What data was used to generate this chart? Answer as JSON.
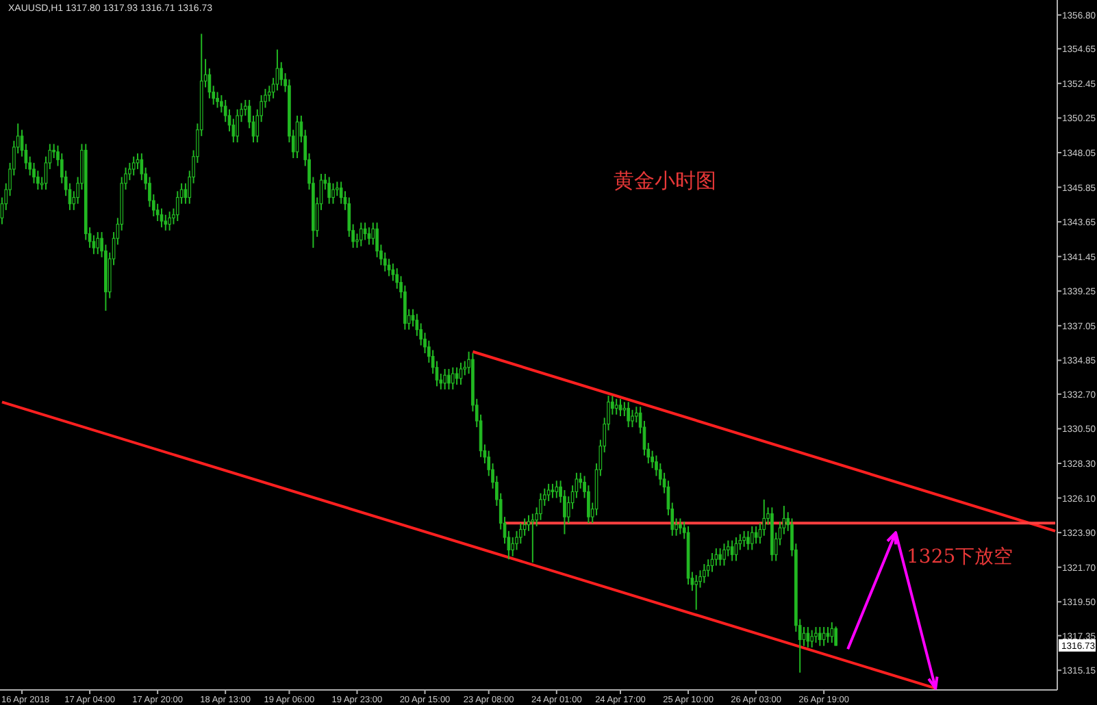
{
  "chart_data": {
    "type": "candlestick",
    "title": "XAUUSD,H1  1317.80 1317.93 1316.71 1316.73",
    "color": "#22b822",
    "categories": [
      null,
      null,
      null,
      null,
      null,
      "16 Apr 2018",
      null,
      null,
      null,
      null,
      null,
      null,
      null,
      null,
      null,
      null,
      null,
      null,
      null,
      null,
      null,
      null,
      "17 Apr 04:00",
      null,
      null,
      null,
      null,
      null,
      null,
      null,
      null,
      null,
      null,
      null,
      null,
      null,
      null,
      null,
      null,
      "17 Apr 20:00",
      null,
      null,
      null,
      null,
      null,
      null,
      null,
      null,
      null,
      null,
      null,
      null,
      null,
      null,
      null,
      null,
      "18 Apr 13:00",
      null,
      null,
      null,
      null,
      null,
      null,
      null,
      null,
      null,
      null,
      null,
      null,
      null,
      null,
      null,
      "19 Apr 06:00",
      null,
      null,
      null,
      null,
      null,
      null,
      null,
      null,
      null,
      null,
      null,
      null,
      null,
      null,
      null,
      null,
      "19 Apr 23:00",
      null,
      null,
      null,
      null,
      null,
      null,
      null,
      null,
      null,
      null,
      null,
      null,
      null,
      null,
      null,
      null,
      "20 Apr 15:00",
      null,
      null,
      null,
      null,
      null,
      null,
      null,
      null,
      null,
      null,
      null,
      null,
      null,
      null,
      null,
      "23 Apr 08:00",
      null,
      null,
      null,
      null,
      null,
      null,
      null,
      null,
      null,
      null,
      null,
      null,
      null,
      null,
      null,
      null,
      "24 Apr 01:00",
      null,
      null,
      null,
      null,
      null,
      null,
      null,
      null,
      null,
      null,
      null,
      null,
      null,
      null,
      null,
      "24 Apr 17:00",
      null,
      null,
      null,
      null,
      null,
      null,
      null,
      null,
      null,
      null,
      null,
      null,
      null,
      null,
      null,
      null,
      "25 Apr 10:00",
      null,
      null,
      null,
      null,
      null,
      null,
      null,
      null,
      null,
      null,
      null,
      null,
      null,
      null,
      null,
      null,
      "26 Apr 03:00",
      null,
      null,
      null,
      null,
      null,
      null,
      null,
      null,
      null,
      null,
      null,
      null,
      null,
      null,
      null,
      null,
      "26 Apr 19:00",
      null,
      null,
      null,
      null,
      null,
      null,
      null,
      null,
      null,
      null,
      null,
      null,
      null,
      null,
      null,
      null,
      null,
      null,
      null,
      null,
      null,
      null,
      null,
      null,
      null,
      null,
      null,
      null,
      null,
      null,
      null,
      null,
      null,
      null,
      null,
      null,
      null,
      null,
      null,
      null,
      null,
      null,
      null,
      null,
      null,
      null,
      null,
      null,
      null,
      null,
      null,
      null,
      null,
      null,
      null,
      null,
      null,
      null
    ],
    "ohlc": [
      [
        1343.9,
        1345.2,
        1343.5,
        1344.8
      ],
      [
        1344.8,
        1346.1,
        1344.4,
        1345.7
      ],
      [
        1345.7,
        1347.4,
        1345.3,
        1347.0
      ],
      [
        1347.0,
        1348.8,
        1346.6,
        1348.4
      ],
      [
        1348.4,
        1349.9,
        1348.0,
        1349.1
      ],
      [
        1349.1,
        1349.5,
        1347.8,
        1348.2
      ],
      [
        1348.2,
        1348.6,
        1347.0,
        1347.4
      ],
      [
        1347.4,
        1347.8,
        1346.6,
        1347.0
      ],
      [
        1347.0,
        1347.4,
        1346.1,
        1346.5
      ],
      [
        1346.5,
        1346.9,
        1345.7,
        1346.1
      ],
      [
        1346.1,
        1346.5,
        1345.7,
        1346.1
      ],
      [
        1346.1,
        1347.8,
        1345.7,
        1347.4
      ],
      [
        1347.4,
        1348.6,
        1347.0,
        1348.2
      ],
      [
        1348.2,
        1348.6,
        1347.7,
        1348.1
      ],
      [
        1348.1,
        1348.5,
        1347.2,
        1347.6
      ],
      [
        1347.6,
        1348.0,
        1346.1,
        1346.5
      ],
      [
        1346.5,
        1346.9,
        1345.3,
        1345.7
      ],
      [
        1345.7,
        1346.1,
        1344.4,
        1344.8
      ],
      [
        1344.8,
        1345.6,
        1344.4,
        1345.2
      ],
      [
        1345.2,
        1346.5,
        1344.8,
        1346.1
      ],
      [
        1346.1,
        1348.6,
        1345.7,
        1348.2
      ],
      [
        1348.2,
        1348.6,
        1342.5,
        1342.9
      ],
      [
        1342.9,
        1343.3,
        1342.0,
        1342.4
      ],
      [
        1342.4,
        1342.8,
        1341.6,
        1342.0
      ],
      [
        1342.0,
        1343.0,
        1341.6,
        1342.6
      ],
      [
        1342.6,
        1343.0,
        1341.4,
        1341.8
      ],
      [
        1341.8,
        1342.2,
        1338.0,
        1339.2
      ],
      [
        1339.2,
        1341.7,
        1338.8,
        1341.3
      ],
      [
        1341.3,
        1343.0,
        1340.9,
        1342.6
      ],
      [
        1342.6,
        1343.9,
        1342.2,
        1343.5
      ],
      [
        1343.5,
        1346.5,
        1343.1,
        1346.1
      ],
      [
        1346.1,
        1347.1,
        1345.7,
        1346.7
      ],
      [
        1346.7,
        1347.4,
        1346.3,
        1347.0
      ],
      [
        1347.0,
        1347.8,
        1346.6,
        1347.4
      ],
      [
        1347.4,
        1348.0,
        1347.0,
        1347.6
      ],
      [
        1347.6,
        1348.0,
        1346.3,
        1346.7
      ],
      [
        1346.7,
        1347.1,
        1345.7,
        1346.1
      ],
      [
        1346.1,
        1346.5,
        1344.6,
        1345.0
      ],
      [
        1345.0,
        1345.4,
        1344.0,
        1344.4
      ],
      [
        1344.4,
        1344.8,
        1343.7,
        1344.1
      ],
      [
        1344.1,
        1344.5,
        1343.3,
        1343.7
      ],
      [
        1343.7,
        1344.1,
        1343.1,
        1343.5
      ],
      [
        1343.5,
        1344.3,
        1343.1,
        1343.9
      ],
      [
        1343.9,
        1344.5,
        1343.5,
        1344.1
      ],
      [
        1344.1,
        1345.6,
        1343.7,
        1345.2
      ],
      [
        1345.2,
        1346.1,
        1344.8,
        1345.7
      ],
      [
        1345.7,
        1346.1,
        1344.8,
        1345.2
      ],
      [
        1345.2,
        1346.9,
        1344.8,
        1346.5
      ],
      [
        1346.5,
        1348.2,
        1346.1,
        1347.8
      ],
      [
        1347.8,
        1349.9,
        1347.4,
        1349.5
      ],
      [
        1349.5,
        1355.6,
        1349.1,
        1352.6
      ],
      [
        1352.6,
        1354.0,
        1352.2,
        1353.0
      ],
      [
        1353.0,
        1353.4,
        1351.5,
        1351.9
      ],
      [
        1351.9,
        1352.3,
        1351.1,
        1351.5
      ],
      [
        1351.5,
        1351.9,
        1350.9,
        1351.3
      ],
      [
        1351.3,
        1351.7,
        1350.6,
        1351.0
      ],
      [
        1351.0,
        1351.4,
        1350.0,
        1350.4
      ],
      [
        1350.4,
        1350.8,
        1349.4,
        1349.8
      ],
      [
        1349.8,
        1350.2,
        1348.7,
        1349.1
      ],
      [
        1349.1,
        1350.8,
        1348.7,
        1350.4
      ],
      [
        1350.4,
        1351.2,
        1350.0,
        1350.8
      ],
      [
        1350.8,
        1351.4,
        1350.4,
        1351.0
      ],
      [
        1351.0,
        1351.4,
        1349.6,
        1350.0
      ],
      [
        1350.0,
        1350.4,
        1348.7,
        1349.1
      ],
      [
        1349.1,
        1350.8,
        1348.7,
        1350.4
      ],
      [
        1350.4,
        1351.7,
        1350.0,
        1351.3
      ],
      [
        1351.3,
        1352.1,
        1350.9,
        1351.7
      ],
      [
        1351.7,
        1352.3,
        1351.3,
        1351.9
      ],
      [
        1351.9,
        1352.8,
        1351.5,
        1352.4
      ],
      [
        1352.4,
        1354.6,
        1352.0,
        1353.4
      ],
      [
        1353.4,
        1353.8,
        1352.3,
        1352.7
      ],
      [
        1352.7,
        1353.1,
        1351.9,
        1352.3
      ],
      [
        1352.3,
        1352.7,
        1348.7,
        1349.1
      ],
      [
        1349.1,
        1349.5,
        1347.7,
        1348.1
      ],
      [
        1348.1,
        1350.4,
        1347.7,
        1350.0
      ],
      [
        1350.0,
        1350.4,
        1348.7,
        1349.1
      ],
      [
        1349.1,
        1349.5,
        1347.2,
        1347.6
      ],
      [
        1347.6,
        1348.0,
        1345.7,
        1346.1
      ],
      [
        1346.1,
        1346.5,
        1342.0,
        1343.1
      ],
      [
        1343.1,
        1345.2,
        1342.7,
        1344.8
      ],
      [
        1344.8,
        1346.7,
        1344.4,
        1346.3
      ],
      [
        1346.3,
        1346.7,
        1345.7,
        1346.1
      ],
      [
        1346.1,
        1346.5,
        1344.8,
        1345.2
      ],
      [
        1345.2,
        1346.1,
        1344.8,
        1345.7
      ],
      [
        1345.7,
        1346.2,
        1345.3,
        1345.8
      ],
      [
        1345.8,
        1346.2,
        1344.8,
        1345.2
      ],
      [
        1345.2,
        1345.6,
        1344.4,
        1344.8
      ],
      [
        1344.8,
        1345.2,
        1342.7,
        1343.1
      ],
      [
        1343.1,
        1343.5,
        1342.0,
        1342.4
      ],
      [
        1342.4,
        1342.9,
        1342.0,
        1342.5
      ],
      [
        1342.5,
        1343.6,
        1342.1,
        1343.2
      ],
      [
        1343.2,
        1343.6,
        1342.5,
        1342.9
      ],
      [
        1342.9,
        1343.3,
        1342.2,
        1342.6
      ],
      [
        1342.6,
        1343.6,
        1342.2,
        1343.2
      ],
      [
        1343.2,
        1343.6,
        1341.4,
        1341.8
      ],
      [
        1341.8,
        1342.2,
        1340.9,
        1341.3
      ],
      [
        1341.3,
        1341.7,
        1340.5,
        1340.9
      ],
      [
        1340.9,
        1341.3,
        1340.2,
        1340.6
      ],
      [
        1340.6,
        1341.0,
        1339.9,
        1340.3
      ],
      [
        1340.3,
        1340.7,
        1339.4,
        1339.8
      ],
      [
        1339.8,
        1340.2,
        1338.8,
        1339.2
      ],
      [
        1339.2,
        1339.6,
        1336.8,
        1337.2
      ],
      [
        1337.2,
        1338.1,
        1336.8,
        1337.7
      ],
      [
        1337.7,
        1338.1,
        1337.0,
        1337.4
      ],
      [
        1337.4,
        1337.8,
        1336.4,
        1336.8
      ],
      [
        1336.8,
        1337.2,
        1335.8,
        1336.2
      ],
      [
        1336.2,
        1336.6,
        1335.3,
        1335.7
      ],
      [
        1335.7,
        1336.1,
        1334.7,
        1335.1
      ],
      [
        1335.1,
        1335.5,
        1334.0,
        1334.4
      ],
      [
        1334.4,
        1334.8,
        1333.2,
        1333.6
      ],
      [
        1333.6,
        1334.0,
        1333.0,
        1333.4
      ],
      [
        1333.4,
        1334.3,
        1333.0,
        1333.9
      ],
      [
        1333.9,
        1334.3,
        1333.0,
        1333.4
      ],
      [
        1333.4,
        1334.4,
        1333.0,
        1334.0
      ],
      [
        1334.0,
        1334.4,
        1333.3,
        1333.7
      ],
      [
        1333.7,
        1334.7,
        1333.3,
        1334.3
      ],
      [
        1334.3,
        1334.8,
        1333.9,
        1334.4
      ],
      [
        1334.4,
        1335.4,
        1334.0,
        1334.9
      ],
      [
        1334.9,
        1335.3,
        1331.6,
        1332.0
      ],
      [
        1332.0,
        1332.4,
        1330.6,
        1331.0
      ],
      [
        1331.0,
        1331.4,
        1328.7,
        1329.1
      ],
      [
        1329.1,
        1329.5,
        1328.3,
        1328.7
      ],
      [
        1328.7,
        1329.1,
        1327.5,
        1327.9
      ],
      [
        1327.9,
        1328.3,
        1326.7,
        1327.1
      ],
      [
        1327.1,
        1327.5,
        1325.6,
        1326.0
      ],
      [
        1326.0,
        1326.4,
        1324.1,
        1324.5
      ],
      [
        1324.5,
        1324.9,
        1323.2,
        1323.6
      ],
      [
        1323.6,
        1324.0,
        1322.2,
        1322.8
      ],
      [
        1322.8,
        1323.6,
        1322.4,
        1323.2
      ],
      [
        1323.2,
        1324.0,
        1322.8,
        1323.6
      ],
      [
        1323.6,
        1324.5,
        1323.2,
        1324.1
      ],
      [
        1324.1,
        1324.8,
        1323.7,
        1324.4
      ],
      [
        1324.4,
        1325.0,
        1324.0,
        1324.6
      ],
      [
        1324.6,
        1325.1,
        1322.0,
        1324.7
      ],
      [
        1324.7,
        1325.5,
        1324.3,
        1325.1
      ],
      [
        1325.1,
        1326.4,
        1324.7,
        1326.0
      ],
      [
        1326.0,
        1326.7,
        1325.6,
        1326.3
      ],
      [
        1326.3,
        1327.0,
        1325.9,
        1326.6
      ],
      [
        1326.6,
        1327.0,
        1326.1,
        1326.5
      ],
      [
        1326.5,
        1327.2,
        1326.1,
        1326.8
      ],
      [
        1326.8,
        1327.2,
        1325.8,
        1326.2
      ],
      [
        1326.2,
        1326.6,
        1323.8,
        1324.9
      ],
      [
        1324.9,
        1326.2,
        1324.5,
        1325.8
      ],
      [
        1325.8,
        1326.9,
        1325.4,
        1326.5
      ],
      [
        1326.5,
        1327.7,
        1326.1,
        1327.3
      ],
      [
        1327.3,
        1327.7,
        1326.7,
        1327.1
      ],
      [
        1327.1,
        1327.5,
        1326.1,
        1326.5
      ],
      [
        1326.5,
        1326.9,
        1324.5,
        1324.9
      ],
      [
        1324.9,
        1325.8,
        1324.5,
        1325.4
      ],
      [
        1325.4,
        1328.3,
        1325.0,
        1327.9
      ],
      [
        1327.9,
        1329.8,
        1327.5,
        1329.4
      ],
      [
        1329.4,
        1331.2,
        1329.0,
        1330.8
      ],
      [
        1330.8,
        1332.6,
        1330.4,
        1332.2
      ],
      [
        1332.2,
        1332.6,
        1331.4,
        1331.8
      ],
      [
        1331.8,
        1332.4,
        1331.4,
        1332.0
      ],
      [
        1332.0,
        1332.4,
        1331.3,
        1331.7
      ],
      [
        1331.7,
        1332.2,
        1331.3,
        1331.8
      ],
      [
        1331.8,
        1332.2,
        1330.6,
        1331.0
      ],
      [
        1331.0,
        1331.7,
        1330.6,
        1331.3
      ],
      [
        1331.3,
        1331.9,
        1330.9,
        1331.5
      ],
      [
        1331.5,
        1331.9,
        1330.2,
        1330.6
      ],
      [
        1330.6,
        1331.0,
        1328.8,
        1329.2
      ],
      [
        1329.2,
        1329.6,
        1328.3,
        1328.7
      ],
      [
        1328.7,
        1329.1,
        1328.0,
        1328.4
      ],
      [
        1328.4,
        1328.8,
        1327.5,
        1327.9
      ],
      [
        1327.9,
        1328.3,
        1326.9,
        1327.3
      ],
      [
        1327.3,
        1327.7,
        1326.4,
        1326.8
      ],
      [
        1326.8,
        1327.2,
        1325.0,
        1325.4
      ],
      [
        1325.4,
        1325.8,
        1323.7,
        1324.1
      ],
      [
        1324.1,
        1324.8,
        1323.7,
        1324.4
      ],
      [
        1324.4,
        1324.8,
        1323.8,
        1324.2
      ],
      [
        1324.2,
        1324.6,
        1323.5,
        1323.9
      ],
      [
        1323.9,
        1324.3,
        1320.6,
        1321.0
      ],
      [
        1321.0,
        1321.4,
        1320.2,
        1320.6
      ],
      [
        1320.6,
        1321.2,
        1319.0,
        1320.8
      ],
      [
        1320.8,
        1321.5,
        1320.4,
        1321.1
      ],
      [
        1321.1,
        1321.9,
        1320.7,
        1321.5
      ],
      [
        1321.5,
        1322.2,
        1321.1,
        1321.8
      ],
      [
        1321.8,
        1322.6,
        1321.4,
        1322.2
      ],
      [
        1322.2,
        1322.9,
        1321.8,
        1322.5
      ],
      [
        1322.5,
        1322.9,
        1321.8,
        1322.2
      ],
      [
        1322.2,
        1323.2,
        1321.8,
        1322.8
      ],
      [
        1322.8,
        1323.4,
        1322.4,
        1323.0
      ],
      [
        1323.0,
        1323.4,
        1322.1,
        1322.5
      ],
      [
        1322.5,
        1323.6,
        1322.1,
        1323.2
      ],
      [
        1323.2,
        1323.8,
        1322.8,
        1323.4
      ],
      [
        1323.4,
        1324.0,
        1323.0,
        1323.6
      ],
      [
        1323.6,
        1324.0,
        1322.8,
        1323.2
      ],
      [
        1323.2,
        1324.3,
        1322.8,
        1323.9
      ],
      [
        1323.9,
        1324.3,
        1323.2,
        1323.6
      ],
      [
        1323.6,
        1324.5,
        1323.2,
        1324.1
      ],
      [
        1324.1,
        1326.0,
        1323.7,
        1324.8
      ],
      [
        1324.8,
        1325.5,
        1324.4,
        1325.1
      ],
      [
        1325.1,
        1325.5,
        1322.1,
        1322.5
      ],
      [
        1322.5,
        1323.9,
        1322.1,
        1323.5
      ],
      [
        1323.5,
        1324.6,
        1323.1,
        1324.2
      ],
      [
        1324.2,
        1325.6,
        1323.8,
        1324.8
      ],
      [
        1324.8,
        1325.2,
        1324.0,
        1324.4
      ],
      [
        1324.4,
        1324.8,
        1322.4,
        1322.8
      ],
      [
        1322.8,
        1323.2,
        1317.6,
        1318.0
      ],
      [
        1318.0,
        1318.4,
        1315.0,
        1317.1
      ],
      [
        1317.1,
        1317.9,
        1316.7,
        1317.5
      ],
      [
        1317.5,
        1317.9,
        1316.6,
        1317.0
      ],
      [
        1317.0,
        1317.7,
        1316.6,
        1317.3
      ],
      [
        1317.3,
        1317.9,
        1316.9,
        1317.5
      ],
      [
        1317.5,
        1317.9,
        1316.7,
        1317.1
      ],
      [
        1317.1,
        1317.9,
        1316.7,
        1317.5
      ],
      [
        1317.5,
        1317.9,
        1316.9,
        1317.3
      ],
      [
        1317.3,
        1318.2,
        1316.9,
        1317.8
      ],
      [
        1317.8,
        1317.93,
        1316.71,
        1316.73
      ],
      null,
      null,
      null,
      null,
      null,
      null,
      null,
      null,
      null,
      null,
      null,
      null,
      null,
      null,
      null,
      null,
      null,
      null,
      null,
      null,
      null,
      null,
      null,
      null,
      null,
      null,
      null,
      null,
      null,
      null,
      null,
      null,
      null,
      null,
      null,
      null,
      null,
      null,
      null,
      null,
      null,
      null,
      null,
      null,
      null,
      null,
      null,
      null,
      null,
      null,
      null,
      null,
      null,
      null,
      null
    ],
    "series": [
      {
        "type": "line",
        "color": "#ff2020",
        "values": [
          null,
          null,
          null,
          null,
          null,
          null,
          null,
          null,
          null,
          null,
          null,
          null,
          null,
          null,
          null,
          null,
          null,
          null,
          null,
          null,
          null,
          null,
          null,
          null,
          null,
          null,
          null,
          null,
          null,
          null,
          null,
          null,
          null,
          null,
          null,
          null,
          null,
          null,
          null,
          null,
          null,
          null,
          null,
          null,
          null,
          null,
          null,
          null,
          null,
          null,
          null,
          null,
          null,
          null,
          null,
          null,
          null,
          null,
          null,
          null,
          null,
          null,
          null,
          null,
          null,
          null,
          null,
          null,
          null,
          null,
          null,
          null,
          null,
          null,
          null,
          null,
          null,
          null,
          null,
          null,
          null,
          null,
          null,
          null,
          null,
          null,
          null,
          null,
          null,
          null,
          null,
          null,
          null,
          null,
          null,
          null,
          null,
          null,
          null,
          null,
          null,
          null,
          null,
          null,
          null,
          null,
          null,
          null,
          null,
          null,
          null,
          null,
          null,
          null,
          null,
          null,
          null,
          null,
          1335.4,
          null,
          null,
          null,
          null,
          null,
          null,
          null,
          null,
          null,
          null,
          null,
          null,
          null,
          null,
          null,
          null,
          null,
          null,
          null,
          null,
          null,
          null,
          null,
          null,
          null,
          null,
          null,
          null,
          null,
          null,
          null,
          null,
          null,
          null,
          null,
          null,
          null,
          null,
          null,
          null,
          null,
          null,
          null,
          null,
          null,
          null,
          null,
          null,
          null,
          null,
          null,
          null,
          null,
          null,
          null,
          null,
          null,
          null,
          null,
          null,
          null,
          null,
          null,
          null,
          null,
          null,
          null,
          null,
          null,
          null,
          null,
          null,
          null,
          null,
          null,
          null,
          null,
          null,
          null,
          null,
          null,
          null,
          null,
          null,
          null,
          null,
          null,
          null,
          null,
          null,
          null,
          null,
          null,
          null,
          null,
          null,
          null,
          null,
          null,
          null,
          null,
          null,
          null,
          null,
          null,
          null,
          null,
          null,
          null,
          null,
          null,
          null,
          null,
          null,
          null,
          null,
          null,
          null,
          null,
          null,
          null,
          null,
          null,
          null,
          null,
          null,
          null,
          null,
          null,
          null,
          null,
          null,
          null,
          null,
          null,
          null,
          null,
          null,
          null,
          null,
          null,
          null,
          null,
          null,
          null,
          1324.0
        ]
      },
      {
        "type": "line",
        "color": "#ff2020",
        "values": [
          1332.2,
          null,
          null,
          null,
          null,
          null,
          null,
          null,
          null,
          null,
          null,
          null,
          null,
          null,
          null,
          null,
          null,
          null,
          null,
          null,
          null,
          null,
          null,
          null,
          null,
          null,
          null,
          null,
          null,
          null,
          null,
          null,
          null,
          null,
          null,
          null,
          null,
          null,
          null,
          null,
          null,
          null,
          null,
          null,
          null,
          null,
          null,
          null,
          null,
          null,
          null,
          null,
          null,
          null,
          null,
          null,
          null,
          null,
          null,
          null,
          null,
          null,
          null,
          null,
          null,
          null,
          null,
          null,
          null,
          null,
          null,
          null,
          null,
          null,
          null,
          null,
          null,
          null,
          null,
          null,
          null,
          null,
          null,
          null,
          null,
          null,
          null,
          null,
          null,
          null,
          null,
          null,
          null,
          null,
          null,
          null,
          null,
          null,
          null,
          null,
          null,
          null,
          null,
          null,
          null,
          null,
          null,
          null,
          null,
          null,
          null,
          null,
          null,
          null,
          null,
          null,
          null,
          null,
          null,
          null,
          null,
          null,
          null,
          null,
          null,
          null,
          null,
          null,
          null,
          null,
          null,
          null,
          null,
          null,
          null,
          null,
          null,
          null,
          null,
          null,
          null,
          null,
          null,
          null,
          null,
          null,
          null,
          null,
          null,
          null,
          null,
          null,
          null,
          null,
          null,
          null,
          null,
          null,
          null,
          null,
          null,
          null,
          null,
          null,
          null,
          null,
          null,
          null,
          null,
          null,
          null,
          null,
          null,
          null,
          null,
          null,
          null,
          null,
          null,
          null,
          null,
          null,
          null,
          null,
          null,
          null,
          null,
          null,
          null,
          null,
          null,
          null,
          null,
          null,
          null,
          null,
          null,
          null,
          null,
          null,
          null,
          null,
          null,
          null,
          null,
          null,
          null,
          null,
          null,
          null,
          null,
          null,
          null,
          null,
          null,
          null,
          null,
          null,
          null,
          null,
          null,
          null,
          null,
          null,
          null,
          null,
          null,
          null,
          null,
          null,
          null,
          null,
          null,
          null,
          1314.0,
          null,
          null,
          null,
          null,
          null,
          null,
          null,
          null,
          null,
          null,
          null,
          null,
          null,
          null,
          null,
          null,
          null,
          null,
          null,
          null,
          null,
          null,
          null,
          null,
          null,
          null,
          null,
          null,
          null,
          null
        ]
      },
      {
        "type": "line",
        "color": "#ff4040",
        "values": [
          null,
          null,
          null,
          null,
          null,
          null,
          null,
          null,
          null,
          null,
          null,
          null,
          null,
          null,
          null,
          null,
          null,
          null,
          null,
          null,
          null,
          null,
          null,
          null,
          null,
          null,
          null,
          null,
          null,
          null,
          null,
          null,
          null,
          null,
          null,
          null,
          null,
          null,
          null,
          null,
          null,
          null,
          null,
          null,
          null,
          null,
          null,
          null,
          null,
          null,
          null,
          null,
          null,
          null,
          null,
          null,
          null,
          null,
          null,
          null,
          null,
          null,
          null,
          null,
          null,
          null,
          null,
          null,
          null,
          null,
          null,
          null,
          null,
          null,
          null,
          null,
          null,
          null,
          null,
          null,
          null,
          null,
          null,
          null,
          null,
          null,
          null,
          null,
          null,
          null,
          null,
          null,
          null,
          null,
          null,
          null,
          null,
          null,
          null,
          null,
          null,
          null,
          null,
          null,
          null,
          null,
          null,
          null,
          null,
          null,
          null,
          null,
          null,
          null,
          null,
          null,
          null,
          null,
          null,
          null,
          null,
          null,
          null,
          null,
          null,
          null,
          1324.5,
          null,
          null,
          null,
          null,
          null,
          null,
          null,
          null,
          null,
          null,
          null,
          null,
          null,
          null,
          null,
          null,
          null,
          null,
          null,
          null,
          null,
          null,
          null,
          null,
          null,
          null,
          null,
          null,
          null,
          null,
          null,
          null,
          null,
          null,
          null,
          null,
          null,
          null,
          null,
          null,
          null,
          null,
          null,
          null,
          null,
          null,
          null,
          null,
          null,
          null,
          null,
          null,
          null,
          null,
          null,
          null,
          null,
          null,
          null,
          null,
          null,
          null,
          null,
          null,
          null,
          null,
          null,
          null,
          null,
          null,
          null,
          null,
          null,
          null,
          null,
          null,
          null,
          null,
          null,
          null,
          null,
          null,
          null,
          null,
          null,
          null,
          null,
          null,
          null,
          null,
          null,
          null,
          null,
          null,
          null,
          null,
          null,
          null,
          null,
          null,
          null,
          null,
          null,
          null,
          null,
          null,
          null,
          null,
          null,
          null,
          null,
          null,
          null,
          null,
          null,
          null,
          null,
          null,
          null,
          null,
          null,
          null,
          null,
          null,
          null,
          null,
          null,
          null,
          null,
          null,
          null,
          null,
          null,
          null,
          null,
          null,
          null,
          1324.5
        ]
      },
      {
        "type": "line",
        "color": "#ff00ff",
        "values": [
          null,
          null,
          null,
          null,
          null,
          null,
          null,
          null,
          null,
          null,
          null,
          null,
          null,
          null,
          null,
          null,
          null,
          null,
          null,
          null,
          null,
          null,
          null,
          null,
          null,
          null,
          null,
          null,
          null,
          null,
          null,
          null,
          null,
          null,
          null,
          null,
          null,
          null,
          null,
          null,
          null,
          null,
          null,
          null,
          null,
          null,
          null,
          null,
          null,
          null,
          null,
          null,
          null,
          null,
          null,
          null,
          null,
          null,
          null,
          null,
          null,
          null,
          null,
          null,
          null,
          null,
          null,
          null,
          null,
          null,
          null,
          null,
          null,
          null,
          null,
          null,
          null,
          null,
          null,
          null,
          null,
          null,
          null,
          null,
          null,
          null,
          null,
          null,
          null,
          null,
          null,
          null,
          null,
          null,
          null,
          null,
          null,
          null,
          null,
          null,
          null,
          null,
          null,
          null,
          null,
          null,
          null,
          null,
          null,
          null,
          null,
          null,
          null,
          null,
          null,
          null,
          null,
          null,
          null,
          null,
          null,
          null,
          null,
          null,
          null,
          null,
          null,
          null,
          null,
          null,
          null,
          null,
          null,
          null,
          null,
          null,
          null,
          null,
          null,
          null,
          null,
          null,
          null,
          null,
          null,
          null,
          null,
          null,
          null,
          null,
          null,
          null,
          null,
          null,
          null,
          null,
          null,
          null,
          null,
          null,
          null,
          null,
          null,
          null,
          null,
          null,
          null,
          null,
          null,
          null,
          null,
          null,
          null,
          null,
          null,
          null,
          null,
          null,
          null,
          null,
          null,
          null,
          null,
          null,
          null,
          null,
          null,
          null,
          null,
          null,
          null,
          null,
          null,
          null,
          null,
          null,
          null,
          null,
          null,
          null,
          null,
          null,
          null,
          null,
          null,
          null,
          null,
          null,
          null,
          null,
          null,
          null,
          1316.5,
          null,
          null,
          null,
          null,
          null,
          null,
          null,
          null,
          null,
          null,
          null,
          1323.9,
          null,
          null,
          null,
          null,
          null,
          null,
          null,
          null,
          null,
          1314.0,
          null,
          null,
          null,
          null,
          null,
          null,
          null,
          null,
          null,
          null,
          null,
          null,
          null,
          null,
          null,
          null,
          null,
          null,
          null,
          null,
          null,
          null,
          null,
          null,
          null,
          null,
          null,
          null,
          null,
          null
        ]
      }
    ],
    "annotations": [
      "黄金小时图",
      "1325下放空",
      "1316.73"
    ],
    "ylim": [
      1313.9,
      1357.75
    ],
    "yticks": [
      {
        "value": 1356.8,
        "label": "1356.80"
      },
      {
        "value": 1354.65,
        "label": "1354.65"
      },
      {
        "value": 1352.45,
        "label": "1352.45"
      },
      {
        "value": 1350.25,
        "label": "1350.25"
      },
      {
        "value": 1348.05,
        "label": "1348.05"
      },
      {
        "value": 1345.85,
        "label": "1345.85"
      },
      {
        "value": 1343.65,
        "label": "1343.65"
      },
      {
        "value": 1341.45,
        "label": "1341.45"
      },
      {
        "value": 1339.25,
        "label": "1339.25"
      },
      {
        "value": 1337.05,
        "label": "1337.05"
      },
      {
        "value": 1334.85,
        "label": "1334.85"
      },
      {
        "value": 1332.7,
        "label": "1332.70"
      },
      {
        "value": 1330.5,
        "label": "1330.50"
      },
      {
        "value": 1328.3,
        "label": "1328.30"
      },
      {
        "value": 1326.1,
        "label": "1326.10"
      },
      {
        "value": 1323.9,
        "label": "1323.90"
      },
      {
        "value": 1321.7,
        "label": "1321.70"
      },
      {
        "value": 1319.5,
        "label": "1319.50"
      },
      {
        "value": 1317.35,
        "label": "1317.35"
      },
      {
        "value": 1315.15,
        "label": "1315.15"
      }
    ]
  }
}
